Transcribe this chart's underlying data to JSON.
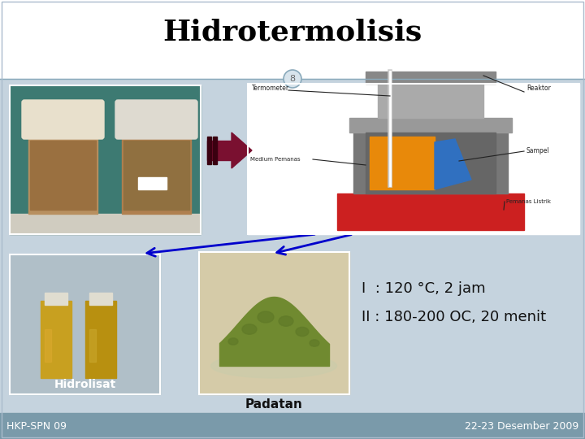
{
  "title": "Hidrotermolisis",
  "slide_number": "8",
  "bg_color": "#c5d3de",
  "header_bg": "#ffffff",
  "footer_bg": "#7a9aaa",
  "footer_left": "HKP-SPN 09",
  "footer_right": "22-23 Desember 2009",
  "label_hidrolisat": "Hidrolisat",
  "label_padatan": "Padatan",
  "text_line1": "I  : 120 °C, 2 jam",
  "text_line2": "II : 180-200 OC, 20 menit",
  "title_fontsize": 26,
  "title_color": "#000000",
  "header_line_color": "#8aaabb",
  "circle_edge_color": "#8aaabb",
  "circle_face_color": "#d8e4ec",
  "circle_text_color": "#666666",
  "arrow_color": "#7a1030",
  "blue_arrow_color": "#0000cc",
  "content_bg": "#c5d3de",
  "jar_photo_bg": "#3d7a72",
  "hydro_photo_bg": "#b8c8d8",
  "padatan_photo_bg": "#d0c8b0",
  "text_fontsize": 13,
  "footer_fontsize": 9
}
